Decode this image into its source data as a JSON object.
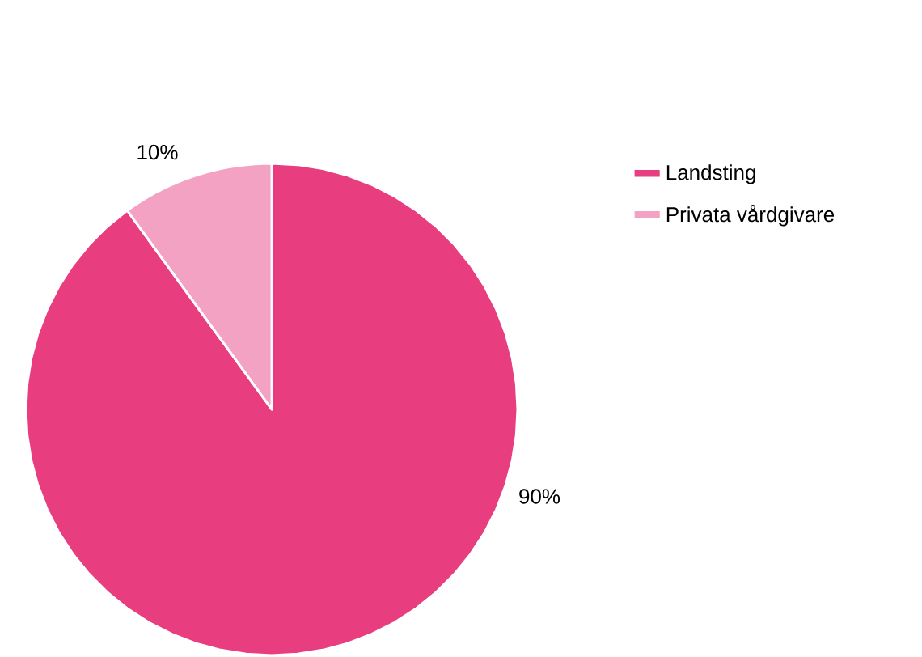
{
  "chart_data": {
    "type": "pie",
    "categories": [
      "Landsting",
      "Privata vårdgivare"
    ],
    "values": [
      90,
      10
    ],
    "colors": [
      "#e83e80",
      "#f4a2c3"
    ],
    "value_labels": [
      "90%",
      "10%"
    ],
    "legend": "right"
  }
}
